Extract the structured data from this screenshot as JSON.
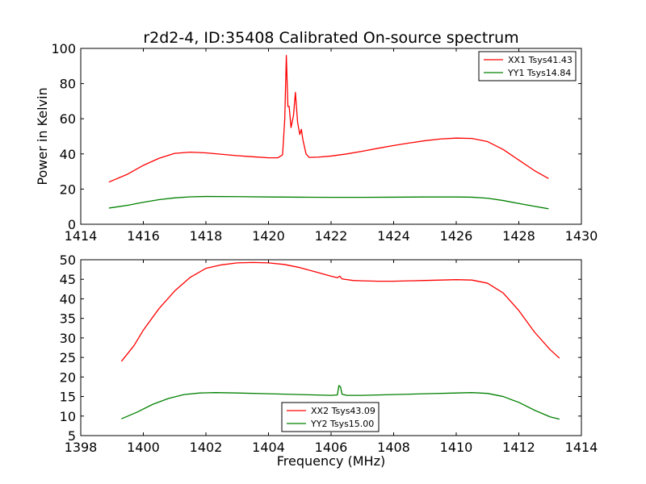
{
  "chart_data": [
    {
      "type": "line",
      "title": "r2d2-4, ID:35408 Calibrated On-source spectrum",
      "xlabel": "",
      "ylabel": "Power in Kelvin",
      "xlim": [
        1414,
        1430
      ],
      "ylim": [
        0,
        100
      ],
      "xticks": [
        1414,
        1416,
        1418,
        1420,
        1422,
        1424,
        1426,
        1428,
        1430
      ],
      "yticks": [
        0,
        20,
        40,
        60,
        80,
        100
      ],
      "legend_position": "top-right",
      "series": [
        {
          "name": "XX1 Tsys41.43",
          "color": "#ff0000",
          "points": [
            [
              1414.9,
              24.0
            ],
            [
              1415.5,
              28.5
            ],
            [
              1416.0,
              33.5
            ],
            [
              1416.5,
              37.5
            ],
            [
              1417.0,
              40.3
            ],
            [
              1417.5,
              41.0
            ],
            [
              1418.0,
              40.6
            ],
            [
              1418.5,
              39.8
            ],
            [
              1419.0,
              39.0
            ],
            [
              1419.5,
              38.4
            ],
            [
              1420.0,
              37.8
            ],
            [
              1420.3,
              37.8
            ],
            [
              1420.45,
              39.5
            ],
            [
              1420.52,
              60.0
            ],
            [
              1420.57,
              96.0
            ],
            [
              1420.62,
              67.0
            ],
            [
              1420.66,
              67.0
            ],
            [
              1420.72,
              55.0
            ],
            [
              1420.8,
              62.0
            ],
            [
              1420.86,
              75.0
            ],
            [
              1420.93,
              58.0
            ],
            [
              1421.0,
              51.0
            ],
            [
              1421.05,
              54.0
            ],
            [
              1421.1,
              48.0
            ],
            [
              1421.2,
              40.0
            ],
            [
              1421.3,
              38.0
            ],
            [
              1421.6,
              38.2
            ],
            [
              1422.0,
              38.8
            ],
            [
              1422.5,
              40.0
            ],
            [
              1423.0,
              41.5
            ],
            [
              1423.5,
              43.2
            ],
            [
              1424.0,
              44.8
            ],
            [
              1424.5,
              46.2
            ],
            [
              1425.0,
              47.5
            ],
            [
              1425.5,
              48.5
            ],
            [
              1426.0,
              49.0
            ],
            [
              1426.5,
              48.8
            ],
            [
              1427.0,
              47.0
            ],
            [
              1427.5,
              42.5
            ],
            [
              1428.0,
              36.5
            ],
            [
              1428.5,
              30.5
            ],
            [
              1428.95,
              26.0
            ]
          ]
        },
        {
          "name": "YY1 Tsys14.84",
          "color": "#008000",
          "points": [
            [
              1414.9,
              9.2
            ],
            [
              1415.5,
              10.8
            ],
            [
              1416.0,
              12.5
            ],
            [
              1416.5,
              14.0
            ],
            [
              1417.0,
              15.0
            ],
            [
              1417.5,
              15.6
            ],
            [
              1418.0,
              15.8
            ],
            [
              1419.0,
              15.7
            ],
            [
              1420.0,
              15.5
            ],
            [
              1421.0,
              15.4
            ],
            [
              1422.0,
              15.3
            ],
            [
              1423.0,
              15.3
            ],
            [
              1424.0,
              15.4
            ],
            [
              1425.0,
              15.5
            ],
            [
              1426.0,
              15.5
            ],
            [
              1426.5,
              15.4
            ],
            [
              1427.0,
              14.8
            ],
            [
              1427.5,
              13.5
            ],
            [
              1428.0,
              11.8
            ],
            [
              1428.5,
              10.2
            ],
            [
              1428.95,
              8.8
            ]
          ]
        }
      ]
    },
    {
      "type": "line",
      "title": "",
      "xlabel": "Frequency (MHz)",
      "ylabel": "",
      "xlim": [
        1398,
        1414
      ],
      "ylim": [
        5,
        50
      ],
      "xticks": [
        1398,
        1400,
        1402,
        1404,
        1406,
        1408,
        1410,
        1412,
        1414
      ],
      "yticks": [
        5,
        10,
        15,
        20,
        25,
        30,
        35,
        40,
        45,
        50
      ],
      "legend_position": "lower-center",
      "series": [
        {
          "name": "XX2 Tsys43.09",
          "color": "#ff0000",
          "points": [
            [
              1399.3,
              24.0
            ],
            [
              1399.7,
              28.0
            ],
            [
              1400.0,
              32.0
            ],
            [
              1400.5,
              37.5
            ],
            [
              1401.0,
              42.0
            ],
            [
              1401.5,
              45.5
            ],
            [
              1402.0,
              47.8
            ],
            [
              1402.5,
              48.7
            ],
            [
              1403.0,
              49.2
            ],
            [
              1403.5,
              49.3
            ],
            [
              1404.0,
              49.2
            ],
            [
              1404.5,
              48.8
            ],
            [
              1405.0,
              48.0
            ],
            [
              1405.5,
              46.9
            ],
            [
              1406.0,
              45.8
            ],
            [
              1406.2,
              45.4
            ],
            [
              1406.28,
              45.8
            ],
            [
              1406.35,
              45.1
            ],
            [
              1406.7,
              44.7
            ],
            [
              1407.0,
              44.6
            ],
            [
              1407.5,
              44.5
            ],
            [
              1408.0,
              44.5
            ],
            [
              1408.5,
              44.6
            ],
            [
              1409.0,
              44.7
            ],
            [
              1409.5,
              44.8
            ],
            [
              1410.0,
              44.9
            ],
            [
              1410.5,
              44.8
            ],
            [
              1411.0,
              44.0
            ],
            [
              1411.5,
              41.5
            ],
            [
              1412.0,
              37.0
            ],
            [
              1412.5,
              31.5
            ],
            [
              1413.0,
              27.0
            ],
            [
              1413.3,
              24.8
            ]
          ]
        },
        {
          "name": "YY2 Tsys15.00",
          "color": "#008000",
          "points": [
            [
              1399.3,
              9.3
            ],
            [
              1399.8,
              11.0
            ],
            [
              1400.3,
              13.0
            ],
            [
              1400.8,
              14.5
            ],
            [
              1401.3,
              15.5
            ],
            [
              1401.8,
              15.9
            ],
            [
              1402.3,
              16.0
            ],
            [
              1403.0,
              15.9
            ],
            [
              1404.0,
              15.7
            ],
            [
              1405.0,
              15.5
            ],
            [
              1406.0,
              15.3
            ],
            [
              1406.2,
              15.4
            ],
            [
              1406.25,
              17.8
            ],
            [
              1406.3,
              17.5
            ],
            [
              1406.35,
              15.6
            ],
            [
              1406.5,
              15.3
            ],
            [
              1407.0,
              15.3
            ],
            [
              1408.0,
              15.5
            ],
            [
              1409.0,
              15.7
            ],
            [
              1410.0,
              15.9
            ],
            [
              1410.5,
              16.0
            ],
            [
              1411.0,
              15.8
            ],
            [
              1411.5,
              15.0
            ],
            [
              1412.0,
              13.5
            ],
            [
              1412.5,
              11.5
            ],
            [
              1413.0,
              9.8
            ],
            [
              1413.3,
              9.2
            ]
          ]
        }
      ]
    }
  ]
}
